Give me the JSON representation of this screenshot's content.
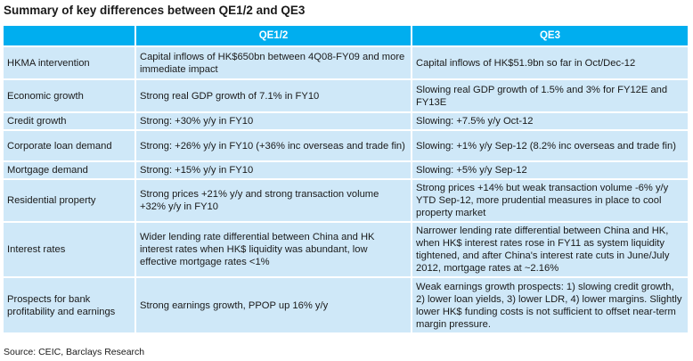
{
  "title": "Summary of key differences between QE1/2 and QE3",
  "table": {
    "headers": [
      "",
      "QE1/2",
      "QE3"
    ],
    "rows": [
      {
        "label": "HKMA intervention",
        "qe12": "Capital inflows of HK$650bn between 4Q08-FY09 and more immediate impact",
        "qe3": "Capital inflows of HK$51.9bn so far in Oct/Dec-12"
      },
      {
        "label": "Economic growth",
        "qe12": "Strong real GDP growth of 7.1% in FY10",
        "qe3": "Slowing real GDP growth of 1.5% and 3% for FY12E and FY13E"
      },
      {
        "label": "Credit growth",
        "qe12": "Strong: +30% y/y in FY10",
        "qe3": "Slowing: +7.5% y/y Oct-12"
      },
      {
        "label": "Corporate loan demand",
        "qe12": "Strong: +26% y/y in FY10 (+36% inc overseas and trade fin)",
        "qe3": "Slowing: +1% y/y Sep-12 (8.2% inc overseas and trade fin)"
      },
      {
        "label": "Mortgage demand",
        "qe12": "Strong: +15% y/y in FY10",
        "qe3": "Slowing: +5% y/y Sep-12"
      },
      {
        "label": "Residential property",
        "qe12": "Strong prices +21% y/y and strong transaction volume +32% y/y in FY10",
        "qe3": "Strong prices +14% but weak transaction volume -6% y/y YTD Sep-12, more prudential measures in place to cool property market"
      },
      {
        "label": "Interest rates",
        "qe12": "Wider lending rate differential between China and HK interest rates when HK$ liquidity was abundant, low effective mortgage rates <1%",
        "qe3": "Narrower lending rate differential between China and HK, when HK$ interest rates rose in FY11 as system liquidity tightened, and after China's interest rate cuts in June/July 2012, mortgage rates at ~2.16%"
      },
      {
        "label": "Prospects for bank profitability and earnings",
        "qe12": "Strong earnings growth, PPOP up 16% y/y",
        "qe3": "Weak earnings growth prospects: 1) slowing credit growth, 2) lower loan yields, 3) lower LDR, 4) lower margins. Slightly lower HK$ funding costs is not sufficient to offset near-term margin pressure."
      }
    ]
  },
  "source": "Source: CEIC, Barclays Research"
}
